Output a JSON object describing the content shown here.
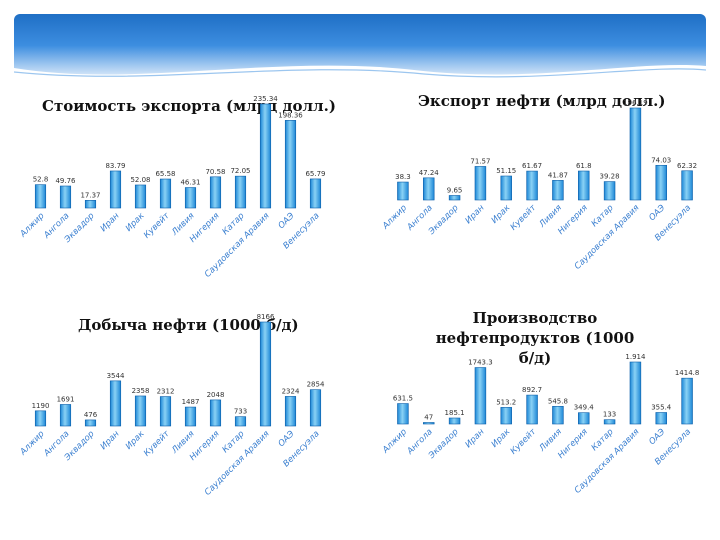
{
  "colors": {
    "bar_top": "#8ad2f5",
    "bar_bottom": "#1c86d6",
    "bar_edge": "#0b5ea8",
    "accent": "#2a7fd6"
  },
  "chart_data": [
    {
      "type": "bar",
      "title": "Стоимость экспорта (млрд долл.)",
      "categories": [
        "Алжир",
        "Ангола",
        "Эквадор",
        "Иран",
        "Ирак",
        "Кувейт",
        "Ливия",
        "Нигерия",
        "Катар",
        "Саудовская Аравия",
        "ОАЭ",
        "Венесуэла"
      ],
      "values": [
        52.8,
        49.76,
        17.37,
        83.79,
        52.08,
        65.58,
        46.31,
        70.58,
        72.05,
        235.34,
        198.36,
        65.79
      ],
      "value_labels": [
        "52.8",
        "49.76",
        "17.37",
        "83.79",
        "52.08",
        "65.58",
        "46.31",
        "70.58",
        "72.05",
        "235.34",
        "198.36",
        "65.79"
      ]
    },
    {
      "type": "bar",
      "title": "Экспорт нефти (млрд долл.)",
      "categories": [
        "Алжир",
        "Ангола",
        "Эквадор",
        "Иран",
        "Ирак",
        "Кувейт",
        "Ливия",
        "Нигерия",
        "Катар",
        "Саудовская Аравия",
        "ОАЭ",
        "Венесуэла"
      ],
      "values": [
        38.3,
        47.24,
        9.65,
        71.57,
        51.15,
        61.67,
        41.87,
        61.8,
        39.28,
        196.19,
        74.03,
        62.32
      ],
      "value_labels": [
        "38.3",
        "47.24",
        "9.65",
        "71.57",
        "51.15",
        "61.67",
        "41.87",
        "61.8",
        "39.28",
        "196.19",
        "74.03",
        "62.32"
      ]
    },
    {
      "type": "bar",
      "title": "Добыча нефти (1000 б/д)",
      "categories": [
        "Алжир",
        "Ангола",
        "Эквадор",
        "Иран",
        "Ирак",
        "Кувейт",
        "Ливия",
        "Нигерия",
        "Катар",
        "Саудовская Аравия",
        "ОАЭ",
        "Венесуэла"
      ],
      "values": [
        1190,
        1691,
        476,
        3544,
        2358,
        2312,
        1487,
        2048,
        733,
        8166,
        2324,
        2854
      ],
      "value_labels": [
        "1190",
        "1691",
        "476",
        "3544",
        "2358",
        "2312",
        "1487",
        "2048",
        "733",
        "8166",
        "2324",
        "2854"
      ]
    },
    {
      "type": "bar",
      "title": "Производство нефтепродуктов (1000 б/д)",
      "categories": [
        "Алжир",
        "Ангола",
        "Эквадор",
        "Иран",
        "Ирак",
        "Кувейт",
        "Ливия",
        "Нигерия",
        "Катар",
        "Саудовская Аравия",
        "ОАЭ",
        "Венесуэла"
      ],
      "values": [
        631.5,
        47,
        185.1,
        1743.3,
        513.2,
        892.7,
        545.8,
        349.4,
        133,
        1914,
        355.4,
        1414.8
      ],
      "value_labels": [
        "631.5",
        "47",
        "185.1",
        "1743.3",
        "513.2",
        "892.7",
        "545.8",
        "349.4",
        "133",
        "1.914",
        "355.4",
        "1414.8"
      ]
    }
  ]
}
